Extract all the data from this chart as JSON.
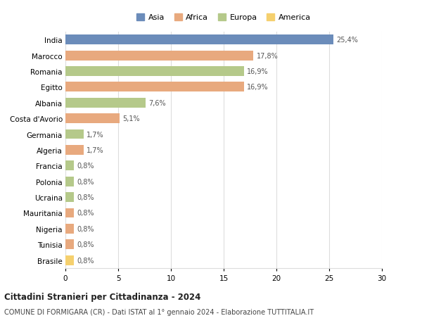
{
  "countries": [
    "India",
    "Marocco",
    "Romania",
    "Egitto",
    "Albania",
    "Costa d'Avorio",
    "Germania",
    "Algeria",
    "Francia",
    "Polonia",
    "Ucraina",
    "Mauritania",
    "Nigeria",
    "Tunisia",
    "Brasile"
  ],
  "values": [
    25.4,
    17.8,
    16.9,
    16.9,
    7.6,
    5.1,
    1.7,
    1.7,
    0.8,
    0.8,
    0.8,
    0.8,
    0.8,
    0.8,
    0.8
  ],
  "labels": [
    "25,4%",
    "17,8%",
    "16,9%",
    "16,9%",
    "7,6%",
    "5,1%",
    "1,7%",
    "1,7%",
    "0,8%",
    "0,8%",
    "0,8%",
    "0,8%",
    "0,8%",
    "0,8%",
    "0,8%"
  ],
  "continents": [
    "Asia",
    "Africa",
    "Europa",
    "Africa",
    "Europa",
    "Africa",
    "Europa",
    "Africa",
    "Europa",
    "Europa",
    "Europa",
    "Africa",
    "Africa",
    "Africa",
    "America"
  ],
  "colors": {
    "Asia": "#6b8cba",
    "Africa": "#e8a97e",
    "Europa": "#b5c98a",
    "America": "#f5d06e"
  },
  "legend_order": [
    "Asia",
    "Africa",
    "Europa",
    "America"
  ],
  "title": "Cittadini Stranieri per Cittadinanza - 2024",
  "subtitle": "COMUNE DI FORMIGARA (CR) - Dati ISTAT al 1° gennaio 2024 - Elaborazione TUTTITALIA.IT",
  "xlim": [
    0,
    30
  ],
  "xticks": [
    0,
    5,
    10,
    15,
    20,
    25,
    30
  ],
  "background_color": "#ffffff",
  "grid_color": "#dddddd"
}
